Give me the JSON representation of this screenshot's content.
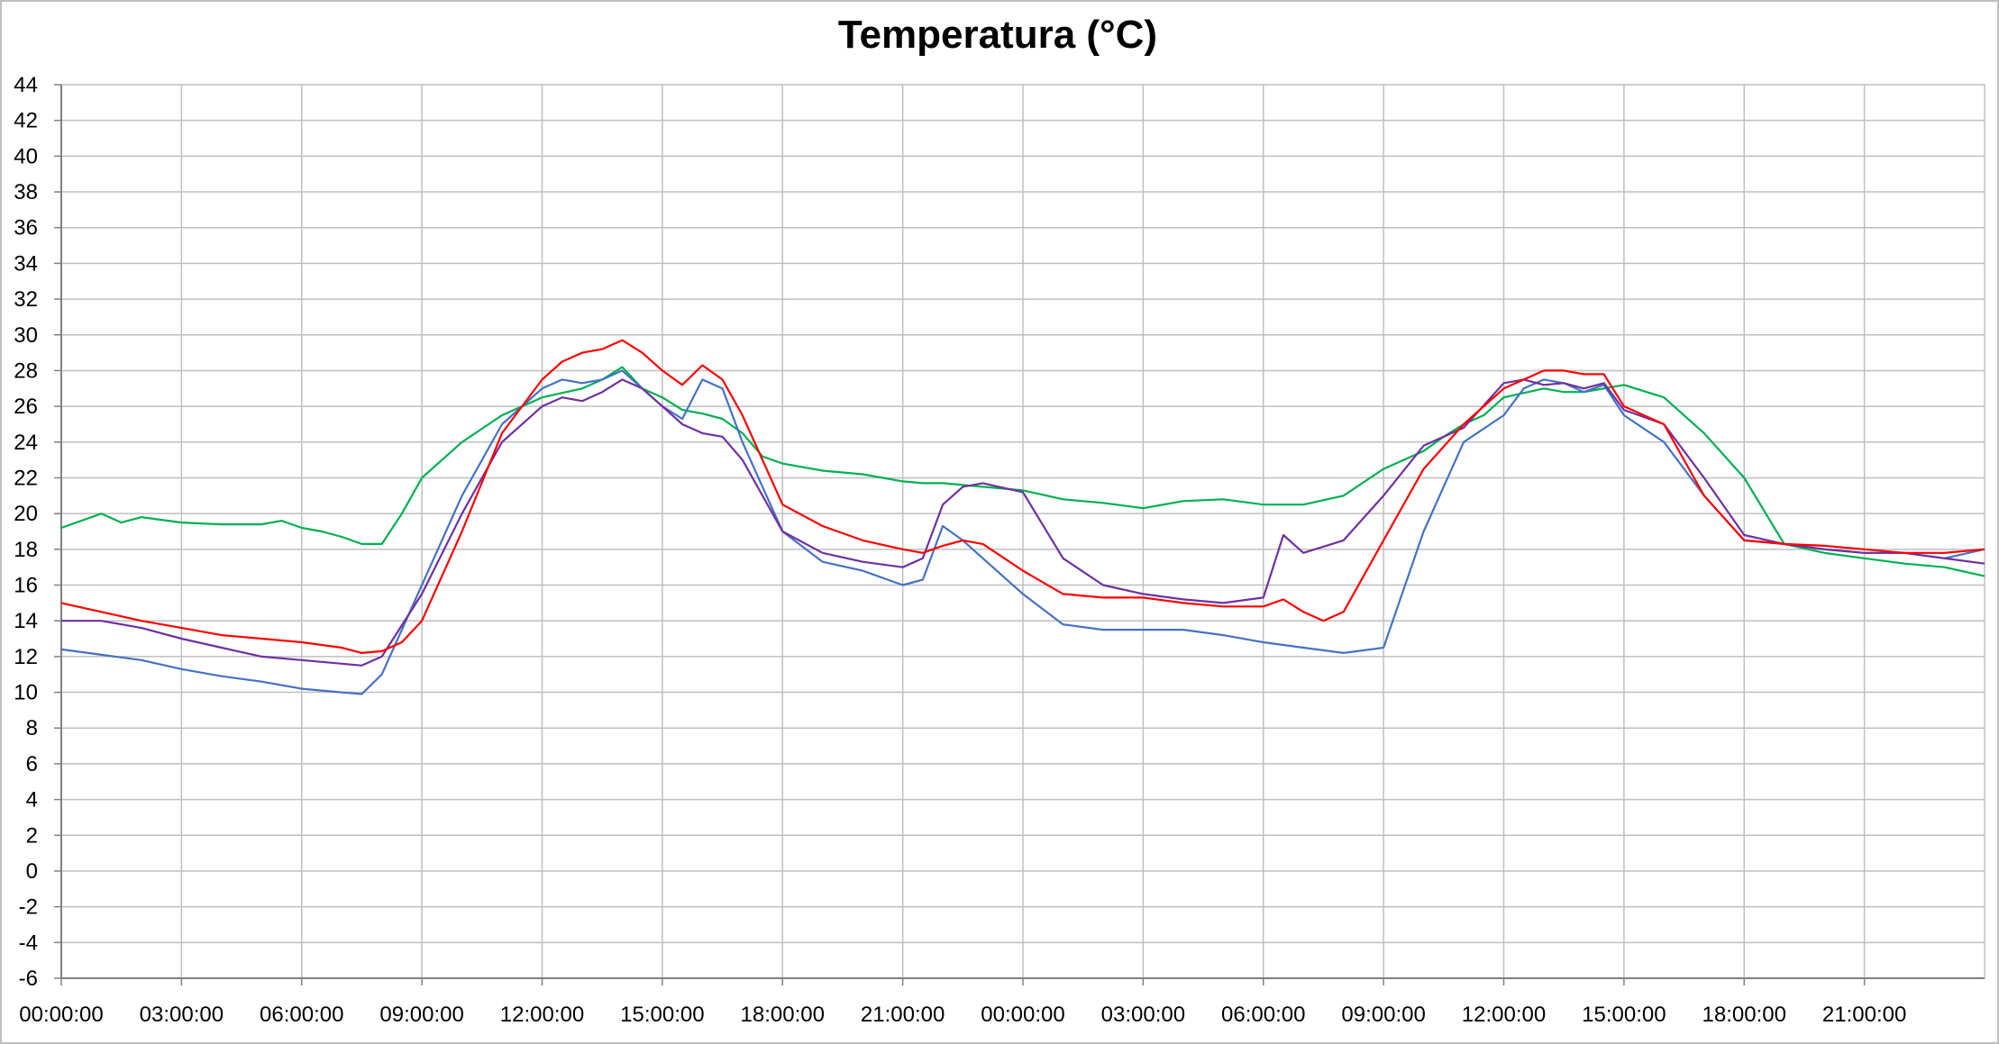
{
  "chart_data": {
    "type": "line",
    "title": "Temperatura (°C)",
    "xlabel": "",
    "ylabel": "",
    "ylim": [
      -6,
      44
    ],
    "y_ticks": [
      -6,
      -4,
      -2,
      0,
      2,
      4,
      6,
      8,
      10,
      12,
      14,
      16,
      18,
      20,
      22,
      24,
      26,
      28,
      30,
      32,
      34,
      36,
      38,
      40,
      42,
      44
    ],
    "x_unit": "hours since first 00:00:00",
    "xlim": [
      0,
      48
    ],
    "x_ticks": [
      0,
      3,
      6,
      9,
      12,
      15,
      18,
      21,
      24,
      27,
      30,
      33,
      36,
      39,
      42,
      45
    ],
    "x_tick_labels": [
      "00:00:00",
      "03:00:00",
      "06:00:00",
      "09:00:00",
      "12:00:00",
      "15:00:00",
      "18:00:00",
      "21:00:00",
      "00:00:00",
      "03:00:00",
      "06:00:00",
      "09:00:00",
      "12:00:00",
      "15:00:00",
      "18:00:00",
      "21:00:00"
    ],
    "grid": true,
    "legend": "none",
    "series": [
      {
        "color": "#00b050",
        "x": [
          0,
          1,
          1.5,
          2,
          3,
          4,
          5,
          5.5,
          6,
          6.5,
          7,
          7.5,
          8,
          8.5,
          9,
          9.5,
          10,
          11,
          12,
          13,
          13.5,
          14,
          14.5,
          15,
          15.5,
          16,
          16.5,
          17,
          17.5,
          18,
          19,
          20,
          21,
          21.5,
          22,
          23,
          24,
          25,
          26,
          27,
          28,
          29,
          30,
          31,
          32,
          33,
          34,
          34.5,
          35,
          35.5,
          36,
          37,
          37.5,
          38,
          39,
          40,
          41,
          42,
          43,
          44,
          45,
          46,
          47,
          48
        ],
        "values": [
          19.2,
          20,
          19.5,
          19.8,
          19.5,
          19.4,
          19.4,
          19.6,
          19.2,
          19.0,
          18.7,
          18.3,
          18.3,
          20,
          22,
          23,
          24,
          25.5,
          26.5,
          27,
          27.5,
          28.2,
          27,
          26.5,
          25.8,
          25.6,
          25.3,
          24.5,
          23.2,
          22.8,
          22.4,
          22.2,
          21.8,
          21.7,
          21.7,
          21.5,
          21.3,
          20.8,
          20.6,
          20.3,
          20.7,
          20.8,
          20.5,
          20.5,
          21,
          22.5,
          23.5,
          24.3,
          25,
          25.5,
          26.5,
          27,
          26.8,
          26.8,
          27.2,
          26.5,
          24.5,
          22,
          18.3,
          17.8,
          17.5,
          17.2,
          17.0,
          16.5
        ]
      },
      {
        "color": "#4472c4",
        "x": [
          0,
          1,
          2,
          3,
          4,
          5,
          6,
          7,
          7.5,
          8,
          9,
          10,
          11,
          12,
          12.5,
          13,
          13.5,
          14,
          14.5,
          15,
          15.5,
          16,
          16.5,
          17,
          17.5,
          18,
          19,
          20,
          21,
          21.5,
          22,
          22.5,
          23,
          24,
          25,
          26,
          27,
          28,
          29,
          30,
          31,
          32,
          33,
          34,
          35,
          36,
          36.5,
          37,
          37.5,
          38,
          38.5,
          39,
          40,
          41,
          42,
          43,
          44,
          45,
          46,
          47,
          48
        ],
        "values": [
          12.4,
          12.1,
          11.8,
          11.3,
          10.9,
          10.6,
          10.2,
          10.0,
          9.9,
          11,
          16,
          21,
          25,
          27,
          27.5,
          27.3,
          27.5,
          28,
          27,
          26,
          25.3,
          27.5,
          27,
          24,
          21.5,
          19,
          17.3,
          16.8,
          16.0,
          16.3,
          19.3,
          18.5,
          17.5,
          15.5,
          13.8,
          13.5,
          13.5,
          13.5,
          13.2,
          12.8,
          12.5,
          12.2,
          12.5,
          19,
          24,
          25.5,
          27,
          27.5,
          27.3,
          26.8,
          27.2,
          25.5,
          24.0,
          21,
          18.5,
          18.3,
          18.0,
          17.8,
          17.8,
          17.5,
          18.0
        ]
      },
      {
        "color": "#7030a0",
        "x": [
          0,
          1,
          2,
          3,
          4,
          5,
          6,
          7,
          7.5,
          8,
          9,
          10,
          11,
          12,
          12.5,
          13,
          13.5,
          14,
          14.5,
          15,
          15.5,
          16,
          16.5,
          17,
          18,
          19,
          20,
          21,
          21.5,
          22,
          22.5,
          23,
          24,
          25,
          26,
          27,
          28,
          29,
          30,
          30.5,
          31,
          32,
          33,
          34,
          35,
          36,
          36.5,
          37,
          37.5,
          38,
          38.5,
          39,
          40,
          41,
          42,
          43,
          44,
          45,
          46,
          47,
          48
        ],
        "values": [
          14.0,
          14.0,
          13.6,
          13.0,
          12.5,
          12.0,
          11.8,
          11.6,
          11.5,
          12,
          15.5,
          20,
          24,
          26,
          26.5,
          26.3,
          26.8,
          27.5,
          27,
          26,
          25,
          24.5,
          24.3,
          23,
          19,
          17.8,
          17.3,
          17.0,
          17.5,
          20.5,
          21.5,
          21.7,
          21.2,
          17.5,
          16.0,
          15.5,
          15.2,
          15.0,
          15.3,
          18.8,
          17.8,
          18.5,
          21,
          23.8,
          24.8,
          27.3,
          27.5,
          27.2,
          27.3,
          27,
          27.3,
          25.8,
          25.0,
          22,
          18.8,
          18.3,
          18.0,
          17.8,
          17.8,
          17.5,
          17.2
        ]
      },
      {
        "color": "#ff0000",
        "x": [
          0,
          1,
          2,
          3,
          4,
          5,
          6,
          7,
          7.5,
          8,
          8.5,
          9,
          10,
          11,
          12,
          12.5,
          13,
          13.5,
          14,
          14.5,
          15,
          15.5,
          16,
          16.5,
          17,
          18,
          19,
          20,
          21,
          21.5,
          22,
          22.5,
          23,
          24,
          25,
          26,
          27,
          28,
          29,
          30,
          30.5,
          31,
          31.5,
          32,
          33,
          34,
          35,
          36,
          36.5,
          37,
          37.5,
          38,
          38.5,
          39,
          40,
          41,
          42,
          43,
          44,
          45,
          46,
          47,
          48
        ],
        "values": [
          15.0,
          14.5,
          14.0,
          13.6,
          13.2,
          13.0,
          12.8,
          12.5,
          12.2,
          12.3,
          12.8,
          14,
          19,
          24.5,
          27.5,
          28.5,
          29,
          29.2,
          29.7,
          29,
          28,
          27.2,
          28.3,
          27.5,
          25.5,
          20.5,
          19.3,
          18.5,
          18.0,
          17.8,
          18.2,
          18.5,
          18.3,
          16.8,
          15.5,
          15.3,
          15.3,
          15.0,
          14.8,
          14.8,
          15.2,
          14.5,
          14.0,
          14.5,
          18.5,
          22.5,
          25,
          27,
          27.5,
          28,
          28,
          27.8,
          27.8,
          26,
          25,
          21,
          18.5,
          18.3,
          18.2,
          18.0,
          17.8,
          17.8,
          18.0
        ]
      }
    ]
  }
}
